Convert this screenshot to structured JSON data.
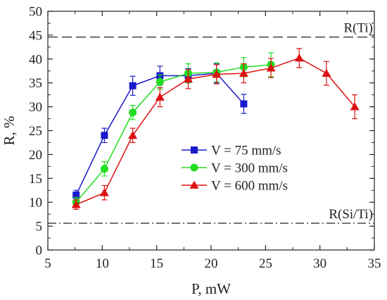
{
  "chart_data": {
    "type": "line",
    "title": "",
    "xlabel": "P, mW",
    "ylabel": "R, %",
    "xlim": [
      5,
      35
    ],
    "ylim": [
      0,
      50
    ],
    "x_ticks": [
      5,
      10,
      15,
      20,
      25,
      30,
      35
    ],
    "y_ticks": [
      0,
      5,
      10,
      15,
      20,
      25,
      30,
      35,
      40,
      45,
      50
    ],
    "grid": false,
    "legend_position": "center",
    "reference_lines": [
      {
        "label": "R(Ti)",
        "y": 44.6,
        "style": "dashed"
      },
      {
        "label": "R(Si/Ti)",
        "y": 5.6,
        "style": "dash-dot"
      }
    ],
    "series": [
      {
        "name": "V = 75 mm/s",
        "color": "#1a1acc",
        "marker": "square",
        "x": [
          7.6,
          10.2,
          12.8,
          15.3,
          17.9,
          20.5,
          23.0
        ],
        "y": [
          11.5,
          24.0,
          34.4,
          36.5,
          36.5,
          37.0,
          30.6
        ],
        "err": [
          1.0,
          1.5,
          2.0,
          2.0,
          1.5,
          2.0,
          2.0
        ]
      },
      {
        "name": "V = 300 mm/s",
        "color": "#22dd22",
        "marker": "circle",
        "x": [
          7.6,
          10.2,
          12.8,
          15.3,
          17.9,
          20.5,
          23.0,
          25.5
        ],
        "y": [
          10.0,
          17.0,
          28.8,
          35.2,
          37.0,
          37.2,
          38.3,
          38.8
        ],
        "err": [
          1.0,
          1.5,
          1.5,
          1.5,
          2.0,
          2.0,
          2.0,
          2.5
        ]
      },
      {
        "name": "V = 600 mm/s",
        "color": "#dd1111",
        "marker": "triangle",
        "x": [
          7.6,
          10.2,
          12.8,
          15.3,
          17.9,
          20.5,
          23.0,
          25.5,
          28.1,
          30.6,
          33.2
        ],
        "y": [
          9.5,
          12.0,
          24.0,
          32.0,
          35.8,
          36.8,
          37.0,
          38.1,
          40.2,
          37.0,
          30.0
        ],
        "err": [
          1.0,
          1.5,
          1.5,
          2.0,
          2.0,
          2.0,
          2.0,
          2.0,
          2.0,
          2.5,
          2.5
        ]
      }
    ]
  }
}
